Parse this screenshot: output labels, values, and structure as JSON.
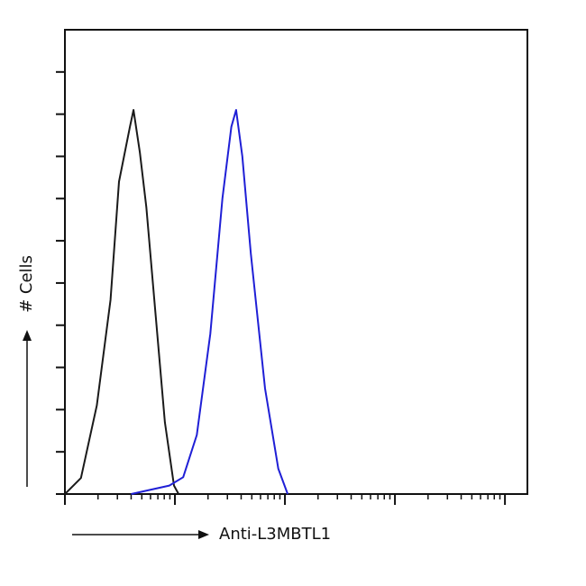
{
  "chart_data": {
    "type": "line",
    "x_label": "Anti-L3MBTL1",
    "y_label": "# Cells",
    "x_scale": "log",
    "xlim": [
      1,
      16000
    ],
    "xticks": [
      1,
      10,
      100,
      1000,
      10000
    ],
    "minor_ticks": true,
    "ylim": [
      0,
      110
    ],
    "yticks": [
      0,
      10,
      20,
      30,
      40,
      50,
      60,
      70,
      80,
      90,
      100
    ],
    "grid": false,
    "series": [
      {
        "color": "#1a1a1a",
        "x": [
          1,
          1.4,
          1.95,
          2.6,
          3.1,
          3.9,
          4.2,
          4.8,
          5.5,
          6.7,
          8.1,
          9.8,
          10.8
        ],
        "values": [
          0,
          3.8,
          21,
          46,
          74,
          87,
          91,
          81,
          68,
          42,
          17,
          2,
          0
        ]
      },
      {
        "color": "#1f1fd6",
        "x": [
          4,
          8.9,
          11.9,
          15.8,
          21,
          27,
          32.6,
          36,
          41,
          49,
          66,
          87,
          106
        ],
        "values": [
          0,
          2,
          4,
          14,
          38,
          70,
          87,
          91,
          80,
          57,
          25,
          6,
          0
        ]
      }
    ]
  }
}
